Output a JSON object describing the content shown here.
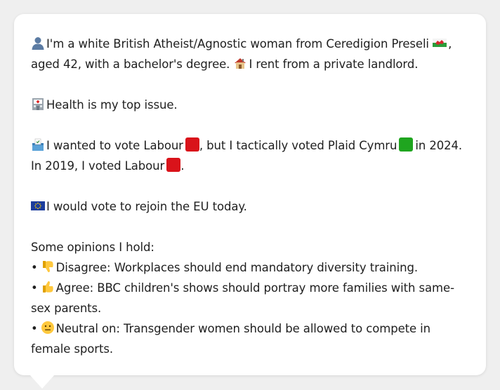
{
  "profile": {
    "line1_a": "I'm a white British Atheist/Agnostic woman from Ceredigion Preseli",
    "line1_b": ", aged 42, with a bachelor's degree.",
    "line1_c": "I rent from a private landlord.",
    "health": "Health is my top issue.",
    "vote_a": "I wanted to vote Labour",
    "vote_b": ", but I tactically voted Plaid Cymru",
    "vote_c": "in 2024.",
    "vote_d": "In 2019, I voted Labour",
    "vote_e": ".",
    "eu": "I would vote to rejoin the EU today.",
    "opinions_heading": "Some opinions I hold:",
    "opinions": [
      {
        "bullet": "•",
        "stance": "Disagree:",
        "text": "Workplaces should end mandatory diversity training.",
        "icon": "thumbs-down-icon"
      },
      {
        "bullet": "•",
        "stance": "Agree:",
        "text": "BBC children's shows should portray more families with same-sex parents.",
        "icon": "thumbs-up-icon"
      },
      {
        "bullet": "•",
        "stance": "Neutral on:",
        "text": "Transgender women should be allowed to compete in female sports.",
        "icon": "neutral-face-icon"
      }
    ]
  },
  "colors": {
    "labour": "#d9131a",
    "plaid": "#1fa51f",
    "eu_blue": "#1c3d9c",
    "card_bg": "#ffffff",
    "page_bg": "#efefef"
  }
}
